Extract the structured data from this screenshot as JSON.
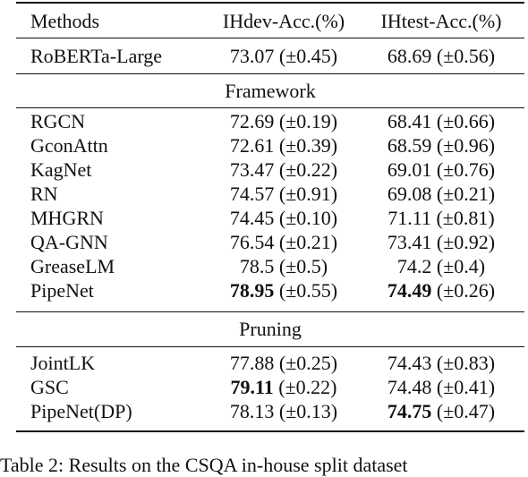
{
  "table": {
    "header": {
      "method": "Methods",
      "dev": "IHdev-Acc.(%)",
      "test": "IHtest-Acc.(%)"
    },
    "baseline": {
      "method": "RoBERTa-Large",
      "dev": "73.07 (±0.45)",
      "test": "68.69 (±0.56)"
    },
    "framework": {
      "title": "Framework",
      "rows": [
        {
          "method": "RGCN",
          "dev_val": "72.69",
          "dev_std": " (±0.19)",
          "test_val": "68.41",
          "test_std": " (±0.66)"
        },
        {
          "method": "GconAttn",
          "dev_val": "72.61",
          "dev_std": " (±0.39)",
          "test_val": "68.59",
          "test_std": " (±0.96)"
        },
        {
          "method": "KagNet",
          "dev_val": "73.47",
          "dev_std": " (±0.22)",
          "test_val": "69.01",
          "test_std": " (±0.76)"
        },
        {
          "method": "RN",
          "dev_val": "74.57",
          "dev_std": " (±0.91)",
          "test_val": "69.08",
          "test_std": " (±0.21)"
        },
        {
          "method": "MHGRN",
          "dev_val": "74.45",
          "dev_std": " (±0.10)",
          "test_val": "71.11",
          "test_std": " (±0.81)"
        },
        {
          "method": "QA-GNN",
          "dev_val": "76.54",
          "dev_std": " (±0.21)",
          "test_val": "73.41",
          "test_std": " (±0.92)"
        },
        {
          "method": "GreaseLM",
          "dev_val": "78.5",
          "dev_std": " (±0.5)",
          "test_val": "74.2",
          "test_std": " (±0.4)"
        },
        {
          "method": "PipeNet",
          "dev_val": "78.95",
          "dev_std": " (±0.55)",
          "test_val": "74.49",
          "test_std": " (±0.26)"
        }
      ]
    },
    "pruning": {
      "title": "Pruning",
      "rows": [
        {
          "method": "JointLK",
          "dev_val": "77.88",
          "dev_std": " (±0.25)",
          "test_val": "74.43",
          "test_std": " (±0.83)"
        },
        {
          "method": "GSC",
          "dev_val": "79.11",
          "dev_std": " (±0.22)",
          "test_val": "74.48",
          "test_std": " (±0.41)"
        },
        {
          "method": "PipeNet(DP)",
          "dev_val": "78.13",
          "dev_std": " (±0.13)",
          "test_val": "74.75",
          "test_std": " (±0.47)"
        }
      ]
    }
  },
  "caption": "Table 2: Results on the CSQA in-house split dataset"
}
